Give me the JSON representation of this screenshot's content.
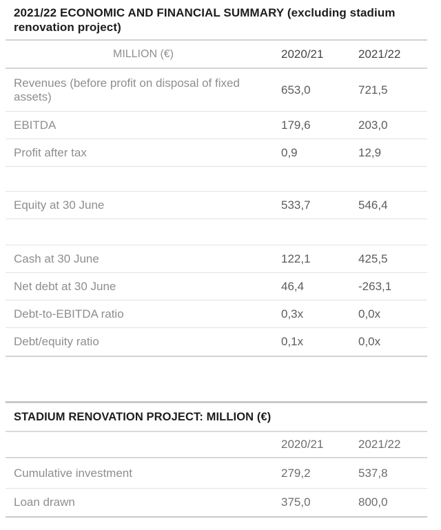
{
  "summary_table": {
    "title": "2021/22 ECONOMIC AND FINANCIAL SUMMARY (excluding stadium renovation project)",
    "header": {
      "label": "MILLION (€)",
      "year1": "2020/21",
      "year2": "2021/22"
    },
    "rows": [
      {
        "label": "Revenues (before profit on disposal of fixed assets)",
        "v1": "653,0",
        "v2": "721,5"
      },
      {
        "label": "EBITDA",
        "v1": "179,6",
        "v2": "203,0"
      },
      {
        "label": "Profit after tax",
        "v1": "0,9",
        "v2": "12,9"
      },
      {
        "label": "",
        "v1": "",
        "v2": ""
      },
      {
        "label": "Equity at 30 June",
        "v1": "533,7",
        "v2": "546,4"
      },
      {
        "label": "",
        "v1": "",
        "v2": ""
      },
      {
        "label": "Cash at 30 June",
        "v1": "122,1",
        "v2": "425,5"
      },
      {
        "label": "Net debt at 30 June",
        "v1": "46,4",
        "v2": "-263,1"
      },
      {
        "label": "Debt-to-EBITDA ratio",
        "v1": "0,3x",
        "v2": "0,0x"
      },
      {
        "label": "Debt/equity ratio",
        "v1": "0,1x",
        "v2": "0,0x"
      }
    ]
  },
  "stadium_table": {
    "title": "STADIUM RENOVATION PROJECT: MILLION (€)",
    "header": {
      "year1": "2020/21",
      "year2": "2021/22"
    },
    "rows": [
      {
        "label": "Cumulative investment",
        "v1": "279,2",
        "v2": "537,8"
      },
      {
        "label": "Loan drawn",
        "v1": "375,0",
        "v2": "800,0"
      }
    ]
  },
  "colors": {
    "title_text": "#1d1d1b",
    "header_year_dark": "#454545",
    "header_year_gray": "#8a8a8a",
    "label_gray": "#8e8e8e",
    "value_gray": "#5c5c5c",
    "rule_light": "#e1e1e1",
    "rule_medium": "#d2d2d2",
    "rule_heavy": "#c9c9c9"
  }
}
